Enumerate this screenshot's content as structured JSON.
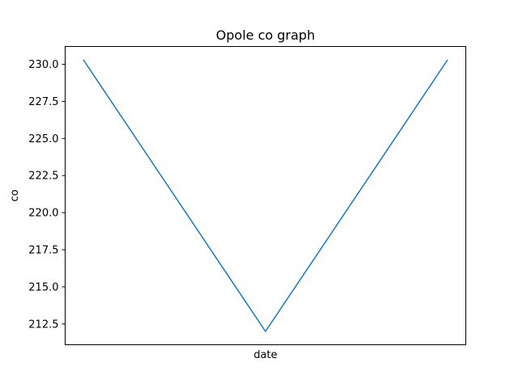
{
  "chart_data": {
    "type": "line",
    "title": "Opole co graph",
    "xlabel": "date",
    "ylabel": "co",
    "x": [
      0,
      1,
      2
    ],
    "series": [
      {
        "values": [
          230.3,
          212.0,
          230.3
        ],
        "color": "#1f77b4"
      }
    ],
    "ylim": [
      211.1,
      231.2
    ],
    "y_ticks": [
      212.5,
      215.0,
      217.5,
      220.0,
      222.5,
      225.0,
      227.5,
      230.0
    ],
    "y_tick_labels": [
      "212.5",
      "215.0",
      "217.5",
      "220.0",
      "222.5",
      "225.0",
      "227.5",
      "230.0"
    ],
    "x_ticks_shown": false,
    "grid": false,
    "legend": "none"
  }
}
